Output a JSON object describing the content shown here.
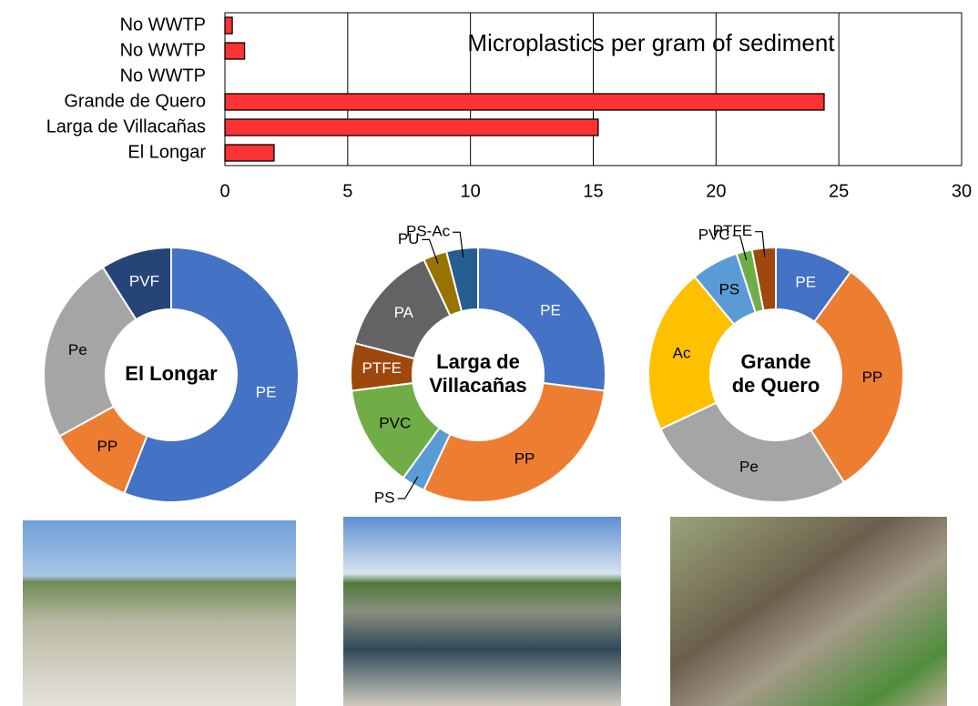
{
  "chart_data": [
    {
      "type": "bar",
      "title": "Microplastics per gram of sediment",
      "categories": [
        "No WWTP",
        "No WWTP",
        "No WWTP",
        "Grande de Quero",
        "Larga de Villacañas",
        "El Longar"
      ],
      "values": [
        0.3,
        0.8,
        0,
        24.4,
        15.2,
        2.0
      ],
      "color": "#ff3333",
      "xlim": [
        0,
        30
      ],
      "xticks": [
        0,
        5,
        10,
        15,
        20,
        25,
        30
      ],
      "grid": true
    },
    {
      "type": "pie",
      "center_label": [
        "El Longar"
      ],
      "categories": [
        "PE",
        "PP",
        "Pe",
        "PVF"
      ],
      "values": [
        56,
        11,
        24,
        9
      ],
      "colors": [
        "#4472c4",
        "#ed7d31",
        "#a5a5a5",
        "#264478"
      ]
    },
    {
      "type": "pie",
      "center_label": [
        "Larga de",
        "Villacañas"
      ],
      "categories": [
        "PE",
        "PP",
        "PS",
        "PVC",
        "PTFE",
        "PA",
        "PU",
        "PS-Ac"
      ],
      "values": [
        27,
        30,
        3,
        13,
        6,
        14,
        3,
        4
      ],
      "colors": [
        "#4472c4",
        "#ed7d31",
        "#5b9bd5",
        "#70ad47",
        "#9e480e",
        "#636363",
        "#997300",
        "#255e91"
      ]
    },
    {
      "type": "pie",
      "center_label": [
        "Grande",
        "de Quero"
      ],
      "categories": [
        "PE",
        "PP",
        "Pe",
        "Ac",
        "PS",
        "PVC",
        "PTFE"
      ],
      "values": [
        10,
        31,
        27,
        21,
        6,
        2,
        3
      ],
      "colors": [
        "#4472c4",
        "#ed7d31",
        "#a5a5a5",
        "#ffc000",
        "#5b9bd5",
        "#70ad47",
        "#9e480e"
      ]
    }
  ]
}
